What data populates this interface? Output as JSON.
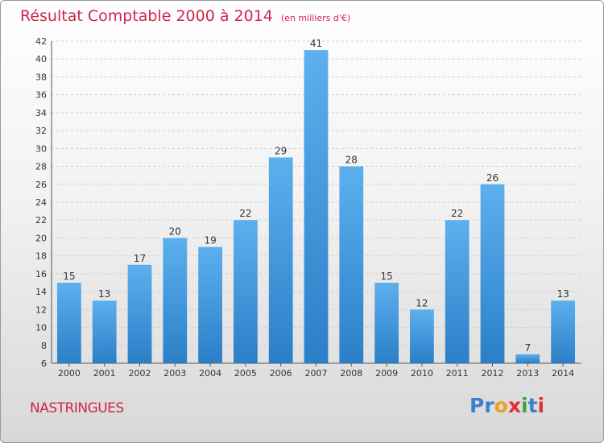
{
  "chart_data": {
    "type": "bar",
    "title": "Résultat Comptable 2000 à 2014",
    "subtitle": "(en milliers d'€)",
    "categories": [
      "2000",
      "2001",
      "2002",
      "2003",
      "2004",
      "2005",
      "2006",
      "2007",
      "2008",
      "2009",
      "2010",
      "2011",
      "2012",
      "2013",
      "2014"
    ],
    "values": [
      15,
      13,
      17,
      20,
      19,
      22,
      29,
      41,
      28,
      15,
      12,
      22,
      26,
      7,
      13
    ],
    "xlabel": "",
    "ylabel": "",
    "ylim": [
      6,
      42
    ],
    "yticks": [
      6,
      8,
      10,
      12,
      14,
      16,
      18,
      20,
      22,
      24,
      26,
      28,
      30,
      32,
      34,
      36,
      38,
      40,
      42
    ],
    "grid": true,
    "bar_color": "#4a9de0"
  },
  "place_name": "NASTRINGUES",
  "logo": {
    "parts": [
      "P",
      "r",
      "o",
      "x",
      "i",
      "t",
      "i"
    ]
  }
}
